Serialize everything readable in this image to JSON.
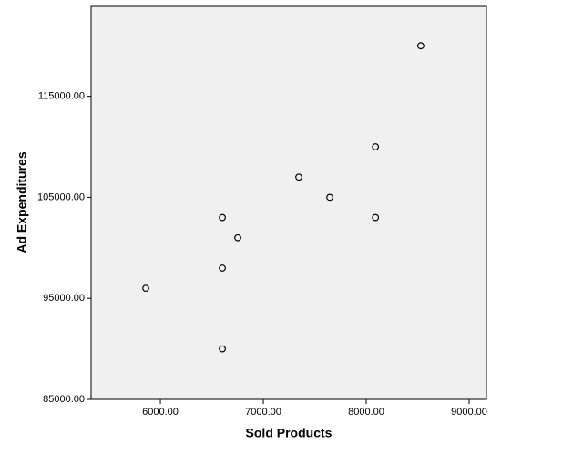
{
  "chart_data": {
    "type": "scatter",
    "x_label": "Sold Products",
    "y_label": "Ad Expenditures",
    "x": [
      8530,
      8090,
      7345,
      7646,
      8090,
      6602,
      6752,
      6602,
      5858,
      6602
    ],
    "values": [
      120000,
      110000,
      107000,
      105000,
      103000,
      103000,
      101000,
      98000,
      96000,
      90000
    ],
    "color": "#000000",
    "plot_background": "#f0f0f0",
    "xlim": [
      5327,
      9168
    ],
    "xticks": [
      {
        "value": 6000,
        "label": "6000.00"
      },
      {
        "value": 7000,
        "label": "7000.00"
      },
      {
        "value": 8000,
        "label": "8000.00"
      },
      {
        "value": 9000,
        "label": "9000.00"
      }
    ],
    "ylim": [
      85000,
      123900
    ],
    "yticks": [
      {
        "value": 85000,
        "label": "85000.00"
      },
      {
        "value": 95000,
        "label": "95000.00"
      },
      {
        "value": 105000,
        "label": "105000.00"
      },
      {
        "value": 115000,
        "label": "115000.00"
      }
    ]
  }
}
